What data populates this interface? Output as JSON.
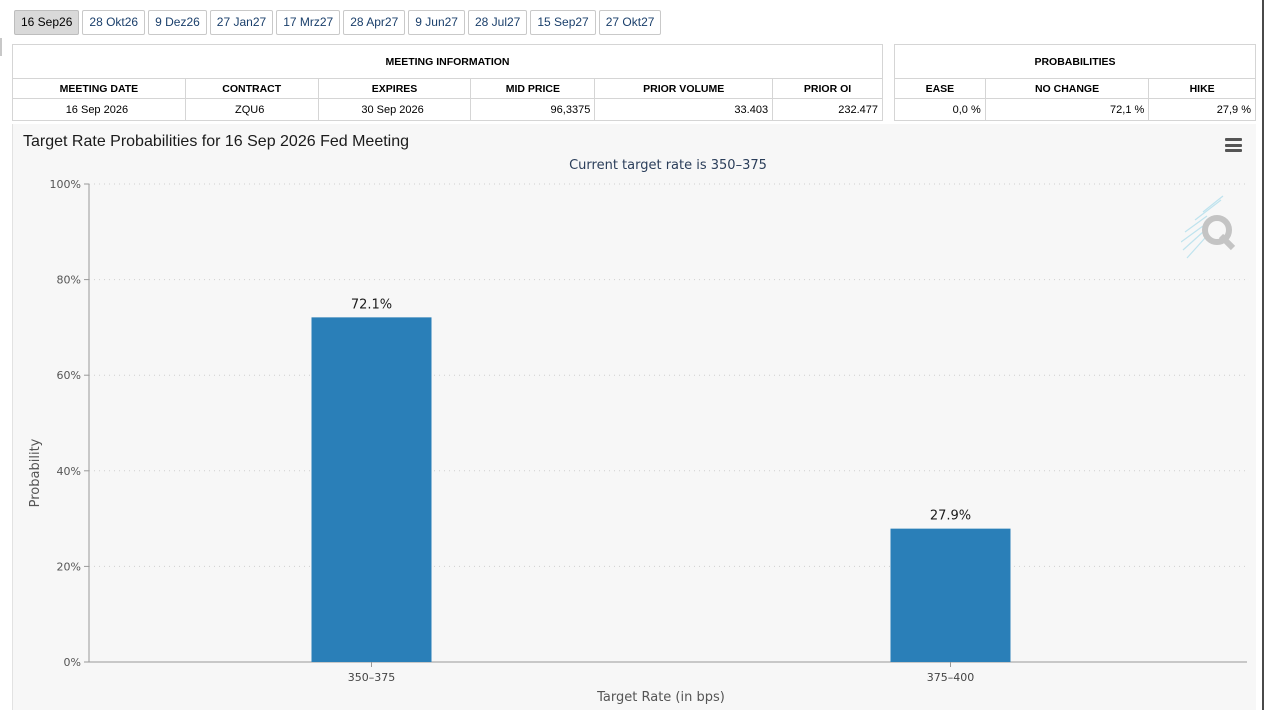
{
  "tabs": [
    {
      "label": "16 Sep26",
      "active": true
    },
    {
      "label": "28 Okt26",
      "active": false
    },
    {
      "label": "9 Dez26",
      "active": false
    },
    {
      "label": "27 Jan27",
      "active": false
    },
    {
      "label": "17 Mrz27",
      "active": false
    },
    {
      "label": "28 Apr27",
      "active": false
    },
    {
      "label": "9 Jun27",
      "active": false
    },
    {
      "label": "28 Jul27",
      "active": false
    },
    {
      "label": "15 Sep27",
      "active": false
    },
    {
      "label": "27 Okt27",
      "active": false
    }
  ],
  "meeting_info": {
    "caption": "MEETING INFORMATION",
    "headers": [
      "MEETING DATE",
      "CONTRACT",
      "EXPIRES",
      "MID PRICE",
      "PRIOR VOLUME",
      "PRIOR OI"
    ],
    "row": [
      "16 Sep 2026",
      "ZQU6",
      "30 Sep 2026",
      "96,3375",
      "33.403",
      "232.477"
    ]
  },
  "probabilities": {
    "caption": "PROBABILITIES",
    "headers": [
      "EASE",
      "NO CHANGE",
      "HIKE"
    ],
    "row": [
      "0,0 %",
      "72,1 %",
      "27,9 %"
    ]
  },
  "chart": {
    "menu_icon": "hamburger-menu-icon",
    "logo_icon": "q-logo-icon"
  },
  "chart_data": {
    "type": "bar",
    "title": "Target Rate Probabilities for 16 Sep 2026 Fed Meeting",
    "subtitle": "Current target rate is 350–375",
    "xlabel": "Target Rate (in bps)",
    "ylabel": "Probability",
    "categories": [
      "350–375",
      "375–400"
    ],
    "values": [
      72.1,
      27.9
    ],
    "data_labels": [
      "72.1%",
      "27.9%"
    ],
    "ylim": [
      0,
      100
    ],
    "yticks": [
      "0%",
      "20%",
      "40%",
      "60%",
      "80%",
      "100%"
    ],
    "grid": true,
    "bar_color": "#2a7fb8"
  }
}
